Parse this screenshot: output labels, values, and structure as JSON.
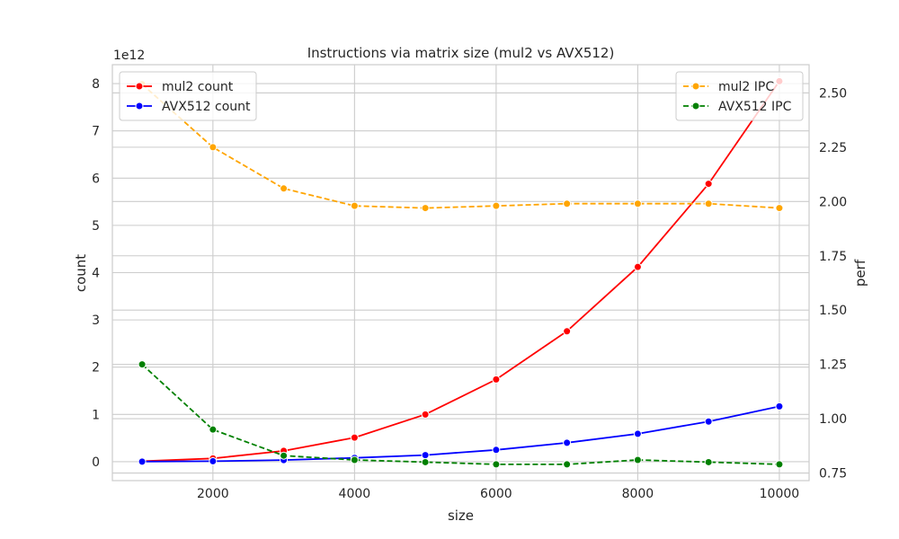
{
  "chart_data": {
    "type": "line",
    "title": "Instructions via matrix size (mul2 vs AVX512)",
    "xlabel": "size",
    "ylabel_left": "count",
    "ylabel_right": "perf",
    "left_axis_offset_label": "1e12",
    "x": [
      1000,
      2000,
      3000,
      4000,
      5000,
      6000,
      7000,
      8000,
      9000,
      10000
    ],
    "xlim": [
      580,
      10420
    ],
    "xticks": [
      2000,
      4000,
      6000,
      8000,
      10000
    ],
    "xtick_labels": [
      "2000",
      "4000",
      "6000",
      "8000",
      "10000"
    ],
    "ylim_left": [
      -0.4,
      8.4
    ],
    "yticks_left": [
      0,
      1,
      2,
      3,
      4,
      5,
      6,
      7,
      8
    ],
    "ytick_labels_left": [
      "0",
      "1",
      "2",
      "3",
      "4",
      "5",
      "6",
      "7",
      "8"
    ],
    "ylim_right": [
      0.715,
      2.63
    ],
    "yticks_right": [
      0.75,
      1.0,
      1.25,
      1.5,
      1.75,
      2.0,
      2.25,
      2.5
    ],
    "ytick_labels_right": [
      "0.75",
      "1.00",
      "1.25",
      "1.50",
      "1.75",
      "2.00",
      "2.25",
      "2.50"
    ],
    "grid": true,
    "series": [
      {
        "name": "mul2 count",
        "axis": "left",
        "color": "#ff0000",
        "dash": false,
        "values": [
          0.01,
          0.07,
          0.23,
          0.51,
          1.0,
          1.74,
          2.76,
          4.12,
          5.88,
          8.05
        ]
      },
      {
        "name": "AVX512 count",
        "axis": "left",
        "color": "#0000ff",
        "dash": false,
        "values": [
          0.002,
          0.01,
          0.035,
          0.08,
          0.14,
          0.25,
          0.4,
          0.59,
          0.85,
          1.17
        ]
      },
      {
        "name": "mul2 IPC",
        "axis": "right",
        "color": "#ffa500",
        "dash": true,
        "values": [
          2.54,
          2.25,
          2.06,
          1.98,
          1.97,
          1.98,
          1.99,
          1.99,
          1.99,
          1.97
        ]
      },
      {
        "name": "AVX512 IPC",
        "axis": "right",
        "color": "#008000",
        "dash": true,
        "values": [
          1.25,
          0.95,
          0.83,
          0.81,
          0.8,
          0.79,
          0.79,
          0.81,
          0.8,
          0.79
        ]
      }
    ],
    "legend_left_placement": "upper left",
    "legend_right_placement": "upper right"
  }
}
